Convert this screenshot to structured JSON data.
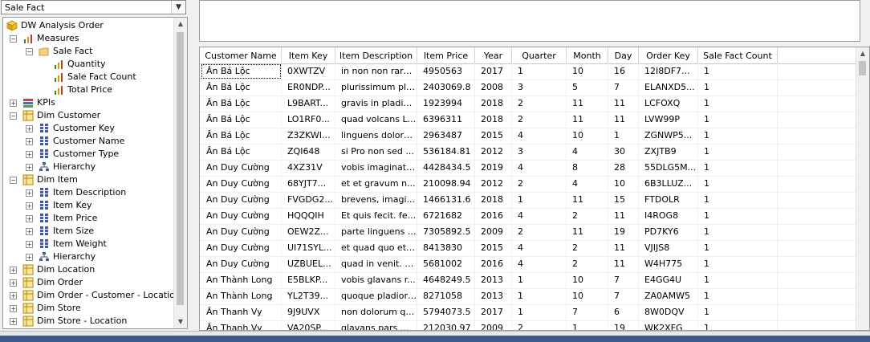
{
  "cube_selector": {
    "value": "Sale Fact"
  },
  "tree": {
    "root": "DW Analysis Order",
    "measures": "Measures",
    "sale_fact": "Sale Fact",
    "quantity": "Quantity",
    "sale_fact_count": "Sale Fact Count",
    "total_price": "Total Price",
    "kpis": "KPIs",
    "dim_customer": "Dim Customer",
    "customer_key": "Customer Key",
    "customer_name": "Customer Name",
    "customer_type": "Customer Type",
    "customer_hierarchy": "Hierarchy",
    "dim_item": "Dim Item",
    "item_description": "Item Description",
    "item_key": "Item Key",
    "item_price": "Item Price",
    "item_size": "Item Size",
    "item_weight": "Item Weight",
    "item_hierarchy": "Hierarchy",
    "dim_location": "Dim Location",
    "dim_order": "Dim Order",
    "dim_order_customer_location": "Dim Order - Customer - Location",
    "dim_store": "Dim Store",
    "dim_store_location": "Dim Store - Location"
  },
  "grid": {
    "headers": [
      "Customer Name",
      "Item Key",
      "Item Description",
      "Item Price",
      "Year",
      "Quarter",
      "Month",
      "Day",
      "Order Key",
      "Sale Fact Count"
    ],
    "rows": [
      [
        "Ân Bá Lộc",
        "0XWTZV",
        "in non non rare...",
        "4950563",
        "2017",
        "1",
        "10",
        "16",
        "12I8DF7...",
        "1"
      ],
      [
        "Ân Bá Lộc",
        "ER0NDP...",
        "plurissimum plor...",
        "2403069.8",
        "2008",
        "3",
        "5",
        "7",
        "ELANXD5...",
        "1"
      ],
      [
        "Ân Bá Lộc",
        "L9BART...",
        "gravis in pladior...",
        "1923994",
        "2018",
        "2",
        "11",
        "11",
        "LCFOXQ",
        "1"
      ],
      [
        "Ân Bá Lộc",
        "LO1RF0...",
        "quad volcans L...",
        "6396311",
        "2018",
        "2",
        "11",
        "11",
        "LVW99P",
        "1"
      ],
      [
        "Ân Bá Lộc",
        "Z3ZKWI...",
        "linguens doloru...",
        "2963487",
        "2015",
        "4",
        "10",
        "1",
        "ZGNWP5...",
        "1"
      ],
      [
        "Ân Bá Lộc",
        "ZQI648",
        "si Pro non sed ...",
        "536184.81",
        "2012",
        "3",
        "4",
        "30",
        "ZXJTB9",
        "1"
      ],
      [
        "An Duy Cường",
        "4XZ31V",
        "vobis imaginato...",
        "4428434.5",
        "2019",
        "4",
        "8",
        "28",
        "55DLG5M...",
        "1"
      ],
      [
        "An Duy Cường",
        "68YJT7...",
        "et et gravum n...",
        "210098.94",
        "2012",
        "2",
        "4",
        "10",
        "6B3LLUZ...",
        "1"
      ],
      [
        "An Duy Cường",
        "FVGDG2...",
        "brevens, imagi...",
        "1466131.6",
        "2018",
        "1",
        "11",
        "15",
        "FTDOLR",
        "1"
      ],
      [
        "An Duy Cường",
        "HQQQIH",
        "Et quis fecit. fe...",
        "6721682",
        "2016",
        "4",
        "2",
        "11",
        "I4ROG8",
        "1"
      ],
      [
        "An Duy Cường",
        "OEW2Z...",
        "parte linguens ...",
        "7305892.5",
        "2009",
        "2",
        "11",
        "19",
        "PD7KY6",
        "1"
      ],
      [
        "An Duy Cường",
        "UI71SYL...",
        "et quad quo et ...",
        "8413830",
        "2015",
        "4",
        "2",
        "11",
        "VJIJS8",
        "1"
      ],
      [
        "An Duy Cường",
        "UZBUEL...",
        "quad in venit. e...",
        "5681002",
        "2016",
        "4",
        "2",
        "11",
        "W4H775",
        "1"
      ],
      [
        "An Thành Long",
        "E5BLKP...",
        "vobis glavans r...",
        "4648249.5",
        "2013",
        "1",
        "10",
        "7",
        "E4GG4U",
        "1"
      ],
      [
        "An Thành Long",
        "YL2T39...",
        "quoque pladior ...",
        "8271058",
        "2013",
        "1",
        "10",
        "7",
        "ZA0AMW5",
        "1"
      ],
      [
        "Ân Thanh Vy",
        "9J9UVX",
        "non dolorum qu...",
        "5794073.5",
        "2017",
        "1",
        "7",
        "6",
        "8W0DQV",
        "1"
      ],
      [
        "Ân Thanh Vy",
        "VA20SP...",
        "glavans pars ...",
        "212030.97",
        "2009",
        "2",
        "1",
        "19",
        "WK2XFG",
        "1"
      ]
    ]
  }
}
